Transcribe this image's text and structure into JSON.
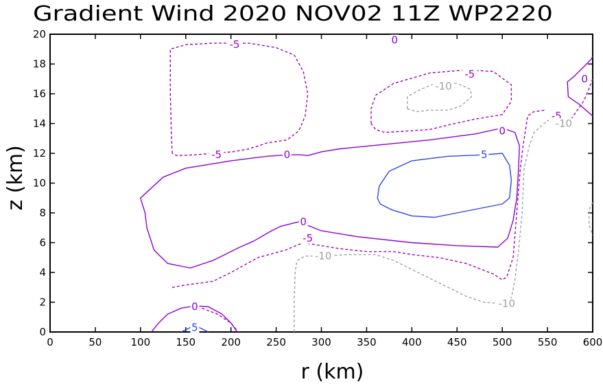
{
  "chart_data": {
    "type": "contour",
    "title": "Gradient Wind 2020 NOV02 11Z  WP2220",
    "xlabel": "r (km)",
    "ylabel": "z (km)",
    "xlim": [
      0,
      600
    ],
    "ylim": [
      0,
      20
    ],
    "xticks": [
      0,
      50,
      100,
      150,
      200,
      250,
      300,
      350,
      400,
      450,
      500,
      550,
      600
    ],
    "yticks": [
      0,
      2,
      4,
      6,
      8,
      10,
      12,
      14,
      16,
      18,
      20
    ],
    "colors": {
      "neg": "#a000c0",
      "zero": "#8a00d4",
      "pos": "#2846e6",
      "neg10": "#a0a0a0"
    },
    "contours": [
      {
        "id": "zero-main",
        "level": 0,
        "style": "solid",
        "color": "#8a00d4",
        "points": [
          [
            378,
            20.05
          ],
          [
            382,
            20.0
          ],
          [
            386,
            20.05
          ]
        ]
      },
      {
        "id": "zero-core",
        "level": 0,
        "style": "solid",
        "color": "#8a00d4",
        "points": [
          [
            519,
            12.5
          ],
          [
            514,
            13.4
          ],
          [
            500,
            13.7
          ],
          [
            470,
            13.3
          ],
          [
            420,
            12.9
          ],
          [
            370,
            12.6
          ],
          [
            320,
            12.3
          ],
          [
            300,
            12.1
          ],
          [
            285,
            11.85
          ],
          [
            278,
            11.9
          ],
          [
            262,
            11.9
          ],
          [
            240,
            11.8
          ],
          [
            200,
            11.5
          ],
          [
            170,
            11.2
          ],
          [
            150,
            11.0
          ],
          [
            125,
            10.4
          ],
          [
            100,
            9.0
          ],
          [
            105,
            8.0
          ],
          [
            107,
            7.0
          ],
          [
            115,
            5.5
          ],
          [
            130,
            4.6
          ],
          [
            155,
            4.3
          ],
          [
            180,
            4.8
          ],
          [
            210,
            5.7
          ],
          [
            225,
            6.1
          ],
          [
            245,
            6.8
          ],
          [
            255,
            7.1
          ],
          [
            275,
            7.4
          ],
          [
            300,
            6.8
          ],
          [
            340,
            6.4
          ],
          [
            400,
            6.0
          ],
          [
            450,
            5.8
          ],
          [
            495,
            5.7
          ],
          [
            506,
            6.3
          ],
          [
            512,
            7.5
          ],
          [
            516,
            9.0
          ],
          [
            518,
            11.0
          ],
          [
            519,
            12.5
          ]
        ]
      },
      {
        "id": "neg5-upper-left",
        "level": -5,
        "style": "dashed",
        "color": "#a000c0",
        "points": [
          [
            135,
            12.0
          ],
          [
            134,
            13.5
          ],
          [
            133,
            16.0
          ],
          [
            133,
            19.0
          ],
          [
            150,
            19.3
          ],
          [
            180,
            19.4
          ],
          [
            205,
            19.4
          ],
          [
            220,
            19.4
          ],
          [
            250,
            19.1
          ],
          [
            270,
            18.6
          ],
          [
            280,
            17.5
          ],
          [
            285,
            16.0
          ],
          [
            282,
            14.5
          ],
          [
            275,
            13.5
          ],
          [
            262,
            12.9
          ],
          [
            240,
            12.7
          ],
          [
            220,
            12.3
          ],
          [
            202,
            12.1
          ],
          [
            180,
            12.0
          ],
          [
            160,
            11.9
          ],
          [
            140,
            11.85
          ],
          [
            135,
            12.0
          ]
        ]
      },
      {
        "id": "neg5-upper-right",
        "level": -5,
        "style": "dashed",
        "color": "#a000c0",
        "points": [
          [
            355,
            14.0
          ],
          [
            355,
            15.0
          ],
          [
            360,
            15.9
          ],
          [
            380,
            16.7
          ],
          [
            420,
            17.4
          ],
          [
            460,
            17.6
          ],
          [
            490,
            17.5
          ],
          [
            510,
            16.6
          ],
          [
            510,
            15.5
          ],
          [
            500,
            14.6
          ],
          [
            470,
            14.3
          ],
          [
            440,
            13.9
          ],
          [
            420,
            13.6
          ],
          [
            395,
            13.5
          ],
          [
            370,
            13.4
          ],
          [
            360,
            13.6
          ],
          [
            355,
            14.0
          ]
        ]
      },
      {
        "id": "neg5-lower",
        "level": -5,
        "style": "dashed",
        "color": "#a000c0",
        "points": [
          [
            135,
            3.0
          ],
          [
            155,
            3.2
          ],
          [
            180,
            3.4
          ],
          [
            200,
            4.0
          ],
          [
            230,
            5.0
          ],
          [
            260,
            5.5
          ],
          [
            280,
            6.0
          ],
          [
            300,
            5.8
          ],
          [
            320,
            5.6
          ],
          [
            350,
            5.4
          ],
          [
            380,
            5.4
          ],
          [
            400,
            5.2
          ],
          [
            430,
            5.0
          ],
          [
            460,
            4.6
          ],
          [
            490,
            3.9
          ],
          [
            500,
            3.5
          ],
          [
            505,
            3.7
          ],
          [
            512,
            5.0
          ],
          [
            516,
            8.0
          ],
          [
            520,
            11.0
          ],
          [
            523,
            12.5
          ],
          [
            528,
            14.5
          ],
          [
            535,
            14.8
          ],
          [
            548,
            14.9
          ]
        ]
      },
      {
        "id": "neg5-bottom-corner",
        "level": -5,
        "style": "dashed",
        "color": "#a000c0",
        "points": [
          [
            168,
            1.6
          ],
          [
            185,
            1.2
          ],
          [
            200,
            0.6
          ],
          [
            208,
            0.0
          ]
        ]
      },
      {
        "id": "neg5-right-top",
        "level": -5,
        "style": "dashed",
        "color": "#a000c0",
        "points": [
          [
            600,
            17.0
          ],
          [
            595,
            16.2
          ],
          [
            590,
            15.5
          ],
          [
            584,
            15.0
          ],
          [
            575,
            14.2
          ],
          [
            565,
            14.0
          ]
        ]
      },
      {
        "id": "neg10-upper",
        "level": -10,
        "style": "dashed",
        "color": "#a0a0a0",
        "points": [
          [
            395,
            15.0
          ],
          [
            395,
            15.8
          ],
          [
            410,
            16.3
          ],
          [
            430,
            16.8
          ],
          [
            450,
            16.7
          ],
          [
            465,
            16.3
          ],
          [
            466,
            15.8
          ],
          [
            455,
            15.2
          ],
          [
            440,
            14.9
          ],
          [
            420,
            14.9
          ],
          [
            405,
            14.8
          ],
          [
            395,
            15.0
          ]
        ]
      },
      {
        "id": "neg10-lower",
        "level": -10,
        "style": "dashed",
        "color": "#a0a0a0",
        "points": [
          [
            270,
            0.0
          ],
          [
            270,
            2.0
          ],
          [
            271,
            4.0
          ],
          [
            273,
            4.8
          ],
          [
            282,
            5.1
          ],
          [
            300,
            5.1
          ],
          [
            330,
            5.2
          ],
          [
            360,
            5.2
          ],
          [
            380,
            4.8
          ],
          [
            400,
            4.2
          ],
          [
            420,
            3.6
          ],
          [
            440,
            3.0
          ],
          [
            460,
            2.4
          ],
          [
            480,
            2.0
          ],
          [
            500,
            1.9
          ],
          [
            510,
            2.3
          ],
          [
            514,
            3.5
          ],
          [
            518,
            5.5
          ],
          [
            522,
            8.0
          ],
          [
            524,
            11.0
          ],
          [
            530,
            12.5
          ],
          [
            535,
            13.4
          ],
          [
            550,
            14.2
          ],
          [
            565,
            14.3
          ],
          [
            578,
            14.0
          ]
        ]
      },
      {
        "id": "neg10-right-edge",
        "level": -10,
        "style": "dashed",
        "color": "#a0a0a0",
        "points": [
          [
            600,
            8.7
          ],
          [
            596,
            8.2
          ],
          [
            596,
            7.2
          ],
          [
            600,
            6.5
          ]
        ]
      },
      {
        "id": "pos5-core",
        "level": 5,
        "style": "solid",
        "color": "#2846e6",
        "points": [
          [
            362,
            9.0
          ],
          [
            364,
            9.8
          ],
          [
            375,
            10.8
          ],
          [
            400,
            11.5
          ],
          [
            440,
            11.8
          ],
          [
            480,
            11.9
          ],
          [
            500,
            12.0
          ],
          [
            508,
            11.2
          ],
          [
            510,
            10.2
          ],
          [
            508,
            9.0
          ],
          [
            500,
            8.6
          ],
          [
            475,
            8.3
          ],
          [
            450,
            8.0
          ],
          [
            425,
            7.7
          ],
          [
            400,
            7.8
          ],
          [
            378,
            8.2
          ],
          [
            365,
            8.6
          ],
          [
            362,
            9.0
          ]
        ]
      },
      {
        "id": "zero-bottom",
        "level": 0,
        "style": "solid",
        "color": "#8a00d4",
        "points": [
          [
            112,
            0.0
          ],
          [
            120,
            0.6
          ],
          [
            130,
            1.2
          ],
          [
            145,
            1.6
          ],
          [
            160,
            1.75
          ],
          [
            175,
            1.7
          ],
          [
            190,
            1.2
          ],
          [
            200,
            0.6
          ],
          [
            207,
            0.0
          ]
        ]
      },
      {
        "id": "pos5-bottom",
        "level": 5,
        "style": "solid",
        "color": "#2846e6",
        "points": [
          [
            145,
            0.0
          ],
          [
            155,
            0.3
          ],
          [
            165,
            0.3
          ],
          [
            175,
            0.0
          ]
        ]
      },
      {
        "id": "zero-right-top",
        "level": 0,
        "style": "solid",
        "color": "#8a00d4",
        "points": [
          [
            600,
            14.5
          ],
          [
            585,
            15.3
          ],
          [
            573,
            15.8
          ],
          [
            572,
            16.8
          ],
          [
            580,
            17.2
          ],
          [
            590,
            17.8
          ],
          [
            598,
            18.3
          ],
          [
            600,
            18.5
          ]
        ]
      }
    ],
    "labels": [
      {
        "text": "0",
        "x": 381,
        "y": 19.6,
        "color": "#8a00d4"
      },
      {
        "text": "-5",
        "x": 204,
        "y": 19.3,
        "color": "#a000c0"
      },
      {
        "text": "-5",
        "x": 464,
        "y": 17.3,
        "color": "#a000c0"
      },
      {
        "text": "-10",
        "x": 435,
        "y": 16.5,
        "color": "#a0a0a0"
      },
      {
        "text": "0",
        "x": 591,
        "y": 17.0,
        "color": "#8a00d4"
      },
      {
        "text": "-5",
        "x": 560,
        "y": 14.5,
        "color": "#a000c0"
      },
      {
        "text": "-10",
        "x": 568,
        "y": 14.0,
        "color": "#a0a0a0"
      },
      {
        "text": "0",
        "x": 500,
        "y": 13.5,
        "color": "#8a00d4"
      },
      {
        "text": "0",
        "x": 262,
        "y": 11.9,
        "color": "#8a00d4"
      },
      {
        "text": "-5",
        "x": 184,
        "y": 11.9,
        "color": "#a000c0"
      },
      {
        "text": "5",
        "x": 480,
        "y": 11.9,
        "color": "#2846e6"
      },
      {
        "text": "0",
        "x": 280,
        "y": 7.4,
        "color": "#8a00d4"
      },
      {
        "text": "-5",
        "x": 285,
        "y": 6.3,
        "color": "#a000c0"
      },
      {
        "text": "-10",
        "x": 302,
        "y": 5.1,
        "color": "#a0a0a0"
      },
      {
        "text": "-10",
        "x": 505,
        "y": 1.9,
        "color": "#a0a0a0"
      },
      {
        "text": "0",
        "x": 160,
        "y": 1.7,
        "color": "#8a00d4"
      },
      {
        "text": "5",
        "x": 160,
        "y": 0.3,
        "color": "#2846e6"
      }
    ]
  }
}
